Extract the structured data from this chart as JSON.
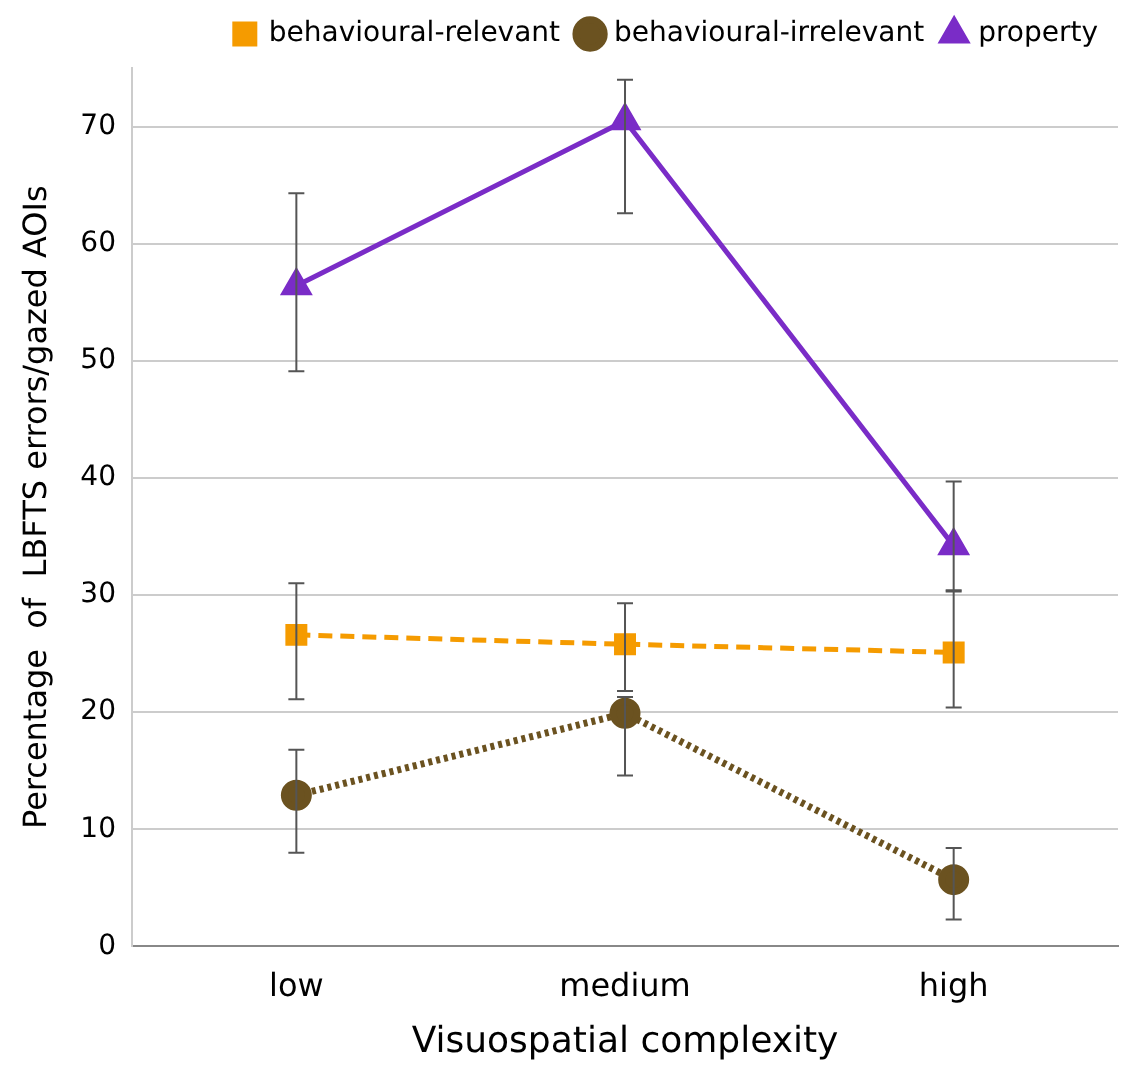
{
  "chart_data": {
    "type": "line",
    "xlabel": "Visuospatial complexity",
    "ylabel": "Percentage  of  LBFTS errors/gazed AOIs",
    "categories": [
      "low",
      "medium",
      "high"
    ],
    "ylim": [
      0,
      75
    ],
    "yticks": [
      0,
      10,
      20,
      30,
      40,
      50,
      60,
      70
    ],
    "grid": "y",
    "legend": "top",
    "series": [
      {
        "name": "behavioural-relevant",
        "color": "#f59b00",
        "marker": "square",
        "line_style": "dashed",
        "values": [
          26.6,
          25.8,
          25.1
        ],
        "errors": [
          [
            21.1,
            31.0
          ],
          [
            21.8,
            29.3
          ],
          [
            20.4,
            30.4
          ]
        ]
      },
      {
        "name": "behavioural-irrelevant",
        "color": "#6b5220",
        "marker": "circle",
        "line_style": "dotted",
        "values": [
          12.9,
          19.9,
          5.7
        ],
        "errors": [
          [
            8.0,
            16.8
          ],
          [
            14.6,
            21.3
          ],
          [
            2.3,
            8.4
          ]
        ]
      },
      {
        "name": "property",
        "color": "#7a2cc7",
        "marker": "triangle",
        "line_style": "solid",
        "values": [
          56.4,
          70.5,
          34.2
        ],
        "errors": [
          [
            49.1,
            64.3
          ],
          [
            62.6,
            74.0
          ],
          [
            30.3,
            39.7
          ]
        ]
      }
    ]
  }
}
